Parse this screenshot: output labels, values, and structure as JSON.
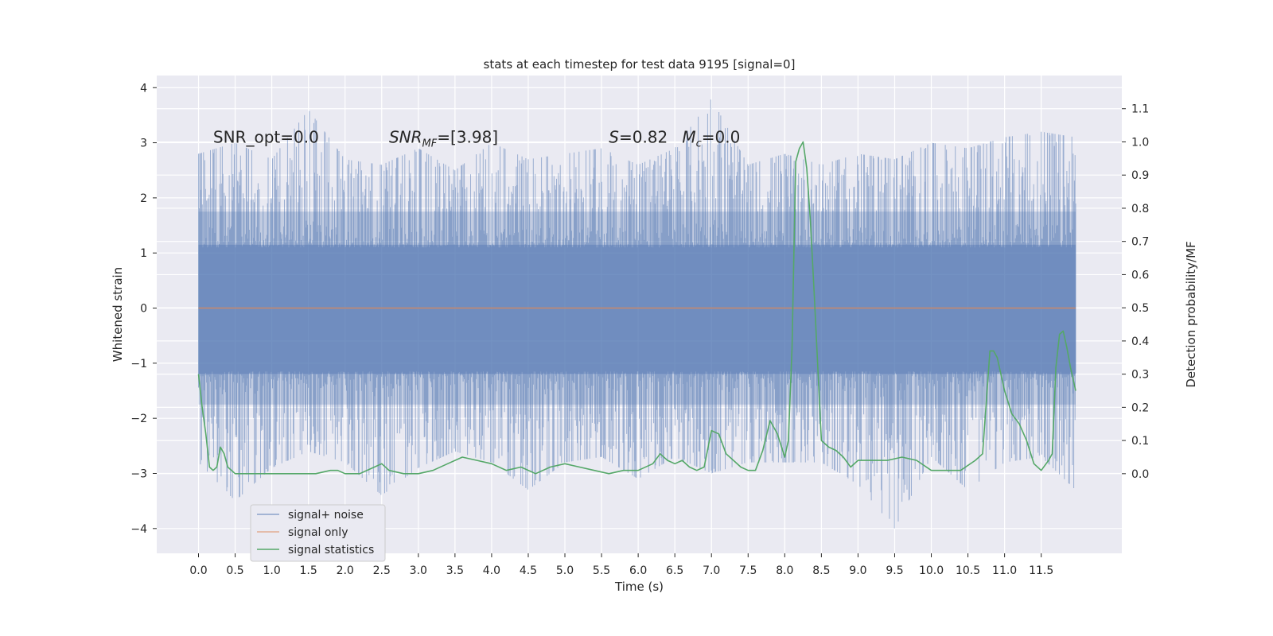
{
  "chart_data": {
    "type": "line",
    "title": "stats at each timestep for test data 9195 [signal=0]",
    "xlabel": "Time (s)",
    "ylabel": "Whitened strain",
    "y2label": "Detection probability/MF",
    "xlim": [
      -0.57,
      12.6
    ],
    "ylim": [
      -4.45,
      4.22
    ],
    "y2lim": [
      -0.24,
      1.2
    ],
    "xticks": [
      0.0,
      0.5,
      1.0,
      1.5,
      2.0,
      2.5,
      3.0,
      3.5,
      4.0,
      4.5,
      5.0,
      5.5,
      6.0,
      6.5,
      7.0,
      7.5,
      8.0,
      8.5,
      9.0,
      9.5,
      10.0,
      10.5,
      11.0,
      11.5
    ],
    "xtick_labels": [
      "0.0",
      "0.5",
      "1.0",
      "1.5",
      "2.0",
      "2.5",
      "3.0",
      "3.5",
      "4.0",
      "4.5",
      "5.0",
      "5.5",
      "6.0",
      "6.5",
      "7.0",
      "7.5",
      "8.0",
      "8.5",
      "9.0",
      "9.5",
      "10.0",
      "10.5",
      "11.0",
      "11.5"
    ],
    "yticks": [
      -4,
      -3,
      -2,
      -1,
      0,
      1,
      2,
      3,
      4
    ],
    "ytick_labels": [
      "−4",
      "−3",
      "−2",
      "−1",
      "0",
      "1",
      "2",
      "3",
      "4"
    ],
    "y2ticks": [
      0.0,
      0.1,
      0.2,
      0.3,
      0.4,
      0.5,
      0.6,
      0.7,
      0.8,
      0.9,
      1.0,
      1.1
    ],
    "y2tick_labels": [
      "0.0",
      "0.1",
      "0.2",
      "0.3",
      "0.4",
      "0.5",
      "0.6",
      "0.7",
      "0.8",
      "0.9",
      "1.0",
      "1.1"
    ],
    "grid": true,
    "legend_position": "lower-left",
    "annotations": [
      {
        "text": "SNR_opt=0.0",
        "x": 0.2,
        "y": 3.1
      },
      {
        "text": "SNR_MF=[3.98]",
        "x": 2.6,
        "y": 3.1
      },
      {
        "text": "S=0.82",
        "x": 5.6,
        "y": 3.1
      },
      {
        "text": "M_c=0.0",
        "x": 6.6,
        "y": 3.1
      }
    ],
    "series": [
      {
        "name": "signal+ noise",
        "color": "#4c72b0",
        "axis": "left",
        "x_range": [
          0.0,
          11.97
        ],
        "envelope": {
          "x": [
            0.0,
            0.5,
            1.0,
            1.5,
            2.0,
            2.5,
            3.0,
            3.5,
            4.0,
            4.5,
            5.0,
            5.5,
            6.0,
            6.5,
            7.0,
            7.5,
            8.0,
            8.5,
            9.0,
            9.5,
            10.0,
            10.5,
            11.0,
            11.5,
            11.97
          ],
          "upper": [
            2.8,
            3.0,
            2.7,
            3.6,
            2.7,
            2.6,
            2.9,
            2.5,
            3.0,
            2.7,
            2.8,
            2.9,
            2.6,
            2.9,
            3.8,
            2.6,
            2.8,
            2.6,
            2.8,
            2.7,
            3.0,
            2.9,
            3.1,
            3.2,
            3.1
          ],
          "lower": [
            -2.8,
            -3.5,
            -2.9,
            -2.6,
            -2.8,
            -3.4,
            -2.9,
            -2.6,
            -2.8,
            -3.3,
            -2.8,
            -2.7,
            -3.1,
            -2.7,
            -3.0,
            -2.8,
            -2.8,
            -2.8,
            -3.2,
            -4.0,
            -2.7,
            -3.3,
            -2.8,
            -2.7,
            -3.3
          ]
        }
      },
      {
        "name": "signal only",
        "color": "#dd8452",
        "axis": "left",
        "x": [
          0.0,
          11.97
        ],
        "y": [
          0.0,
          0.0
        ]
      },
      {
        "name": "signal statistics",
        "color": "#55a868",
        "axis": "right",
        "x": [
          0.0,
          0.05,
          0.1,
          0.15,
          0.2,
          0.25,
          0.3,
          0.35,
          0.4,
          0.5,
          0.6,
          0.8,
          1.0,
          1.2,
          1.4,
          1.6,
          1.8,
          1.9,
          2.0,
          2.2,
          2.4,
          2.5,
          2.6,
          2.8,
          3.0,
          3.2,
          3.4,
          3.6,
          3.8,
          4.0,
          4.2,
          4.4,
          4.6,
          4.8,
          5.0,
          5.2,
          5.4,
          5.6,
          5.8,
          6.0,
          6.2,
          6.3,
          6.4,
          6.5,
          6.6,
          6.7,
          6.8,
          6.9,
          7.0,
          7.1,
          7.2,
          7.3,
          7.4,
          7.5,
          7.6,
          7.7,
          7.8,
          7.9,
          8.0,
          8.05,
          8.1,
          8.15,
          8.2,
          8.25,
          8.3,
          8.35,
          8.4,
          8.5,
          8.6,
          8.7,
          8.8,
          8.9,
          9.0,
          9.2,
          9.4,
          9.6,
          9.8,
          10.0,
          10.2,
          10.4,
          10.6,
          10.7,
          10.8,
          10.85,
          10.9,
          11.0,
          11.1,
          11.2,
          11.3,
          11.4,
          11.5,
          11.6,
          11.65,
          11.7,
          11.75,
          11.8,
          11.85,
          11.9,
          11.97
        ],
        "y": [
          0.3,
          0.2,
          0.12,
          0.02,
          0.01,
          0.02,
          0.08,
          0.06,
          0.02,
          0.0,
          0.0,
          0.0,
          0.0,
          0.0,
          0.0,
          0.0,
          0.01,
          0.01,
          0.0,
          0.0,
          0.02,
          0.03,
          0.01,
          0.0,
          0.0,
          0.01,
          0.03,
          0.05,
          0.04,
          0.03,
          0.01,
          0.02,
          0.0,
          0.02,
          0.03,
          0.02,
          0.01,
          0.0,
          0.01,
          0.01,
          0.03,
          0.06,
          0.04,
          0.03,
          0.04,
          0.02,
          0.01,
          0.02,
          0.13,
          0.12,
          0.06,
          0.04,
          0.02,
          0.01,
          0.01,
          0.07,
          0.16,
          0.12,
          0.05,
          0.1,
          0.38,
          0.94,
          0.98,
          1.0,
          0.92,
          0.76,
          0.55,
          0.1,
          0.08,
          0.07,
          0.05,
          0.02,
          0.04,
          0.04,
          0.04,
          0.05,
          0.04,
          0.01,
          0.01,
          0.01,
          0.04,
          0.06,
          0.37,
          0.37,
          0.35,
          0.25,
          0.18,
          0.15,
          0.1,
          0.03,
          0.01,
          0.04,
          0.06,
          0.32,
          0.42,
          0.43,
          0.38,
          0.32,
          0.25
        ]
      }
    ]
  }
}
